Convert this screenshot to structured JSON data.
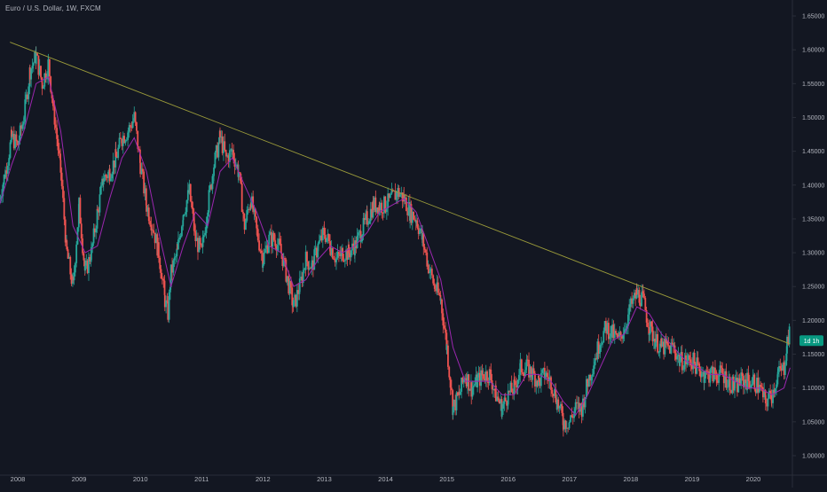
{
  "symbol_title": "Euro / U.S. Dollar, 1W, FXCM",
  "price_tag": {
    "label": "1d 1h",
    "value": 1.17,
    "color": "#089981"
  },
  "colors": {
    "background": "#131722",
    "up": "#26a69a",
    "down": "#ef5350",
    "moving_average": "#9c27b0",
    "trendline": "#9b9b3a",
    "axis_text": "#b2b5be",
    "axis_line": "#2a2e39"
  },
  "chart_data": {
    "type": "line",
    "xlabel": "",
    "ylabel": "",
    "x_ticks": [
      "2008",
      "2009",
      "2010",
      "2011",
      "2012",
      "2013",
      "2014",
      "2015",
      "2016",
      "2017",
      "2018",
      "2019",
      "2020"
    ],
    "y_ticks": [
      "1.65000",
      "1.60000",
      "1.55000",
      "1.50000",
      "1.45000",
      "1.40000",
      "1.35000",
      "1.30000",
      "1.25000",
      "1.20000",
      "1.15000",
      "1.10000",
      "1.05000",
      "1.00000"
    ],
    "ylim": [
      0.97,
      1.67
    ],
    "xlim": [
      2007.7,
      2020.9
    ],
    "grid": false,
    "legend": "none",
    "series": [
      {
        "kind": "candles",
        "points": [
          [
            2007.7,
            1.38
          ],
          [
            2007.8,
            1.42
          ],
          [
            2007.9,
            1.47
          ],
          [
            2008.0,
            1.46
          ],
          [
            2008.1,
            1.5
          ],
          [
            2008.2,
            1.57
          ],
          [
            2008.3,
            1.59
          ],
          [
            2008.4,
            1.55
          ],
          [
            2008.5,
            1.58
          ],
          [
            2008.6,
            1.5
          ],
          [
            2008.7,
            1.42
          ],
          [
            2008.8,
            1.3
          ],
          [
            2008.9,
            1.25
          ],
          [
            2009.0,
            1.37
          ],
          [
            2009.1,
            1.27
          ],
          [
            2009.2,
            1.3
          ],
          [
            2009.3,
            1.36
          ],
          [
            2009.4,
            1.41
          ],
          [
            2009.5,
            1.42
          ],
          [
            2009.6,
            1.44
          ],
          [
            2009.7,
            1.47
          ],
          [
            2009.8,
            1.48
          ],
          [
            2009.9,
            1.5
          ],
          [
            2010.0,
            1.43
          ],
          [
            2010.1,
            1.37
          ],
          [
            2010.2,
            1.34
          ],
          [
            2010.3,
            1.3
          ],
          [
            2010.4,
            1.23
          ],
          [
            2010.45,
            1.21
          ],
          [
            2010.5,
            1.27
          ],
          [
            2010.6,
            1.3
          ],
          [
            2010.7,
            1.36
          ],
          [
            2010.8,
            1.39
          ],
          [
            2010.9,
            1.32
          ],
          [
            2011.0,
            1.3
          ],
          [
            2011.1,
            1.37
          ],
          [
            2011.2,
            1.43
          ],
          [
            2011.3,
            1.47
          ],
          [
            2011.4,
            1.44
          ],
          [
            2011.5,
            1.45
          ],
          [
            2011.6,
            1.42
          ],
          [
            2011.7,
            1.34
          ],
          [
            2011.8,
            1.38
          ],
          [
            2011.9,
            1.33
          ],
          [
            2012.0,
            1.29
          ],
          [
            2012.1,
            1.32
          ],
          [
            2012.2,
            1.32
          ],
          [
            2012.3,
            1.3
          ],
          [
            2012.4,
            1.26
          ],
          [
            2012.5,
            1.22
          ],
          [
            2012.6,
            1.25
          ],
          [
            2012.7,
            1.29
          ],
          [
            2012.8,
            1.28
          ],
          [
            2012.9,
            1.31
          ],
          [
            2013.0,
            1.33
          ],
          [
            2013.1,
            1.31
          ],
          [
            2013.2,
            1.29
          ],
          [
            2013.3,
            1.3
          ],
          [
            2013.4,
            1.3
          ],
          [
            2013.5,
            1.31
          ],
          [
            2013.6,
            1.33
          ],
          [
            2013.7,
            1.35
          ],
          [
            2013.8,
            1.37
          ],
          [
            2013.9,
            1.37
          ],
          [
            2014.0,
            1.37
          ],
          [
            2014.1,
            1.38
          ],
          [
            2014.2,
            1.39
          ],
          [
            2014.3,
            1.38
          ],
          [
            2014.4,
            1.36
          ],
          [
            2014.5,
            1.35
          ],
          [
            2014.6,
            1.32
          ],
          [
            2014.7,
            1.28
          ],
          [
            2014.8,
            1.25
          ],
          [
            2014.9,
            1.23
          ],
          [
            2015.0,
            1.16
          ],
          [
            2015.1,
            1.07
          ],
          [
            2015.2,
            1.09
          ],
          [
            2015.3,
            1.12
          ],
          [
            2015.4,
            1.1
          ],
          [
            2015.5,
            1.11
          ],
          [
            2015.6,
            1.12
          ],
          [
            2015.7,
            1.12
          ],
          [
            2015.8,
            1.09
          ],
          [
            2015.9,
            1.07
          ],
          [
            2016.0,
            1.09
          ],
          [
            2016.1,
            1.1
          ],
          [
            2016.2,
            1.13
          ],
          [
            2016.3,
            1.13
          ],
          [
            2016.4,
            1.12
          ],
          [
            2016.5,
            1.11
          ],
          [
            2016.6,
            1.12
          ],
          [
            2016.7,
            1.11
          ],
          [
            2016.8,
            1.08
          ],
          [
            2016.9,
            1.05
          ],
          [
            2017.0,
            1.05
          ],
          [
            2017.1,
            1.07
          ],
          [
            2017.2,
            1.07
          ],
          [
            2017.3,
            1.11
          ],
          [
            2017.4,
            1.14
          ],
          [
            2017.5,
            1.17
          ],
          [
            2017.6,
            1.19
          ],
          [
            2017.7,
            1.18
          ],
          [
            2017.8,
            1.17
          ],
          [
            2017.9,
            1.19
          ],
          [
            2018.0,
            1.22
          ],
          [
            2018.1,
            1.24
          ],
          [
            2018.2,
            1.23
          ],
          [
            2018.3,
            1.19
          ],
          [
            2018.4,
            1.17
          ],
          [
            2018.5,
            1.16
          ],
          [
            2018.6,
            1.16
          ],
          [
            2018.7,
            1.16
          ],
          [
            2018.8,
            1.14
          ],
          [
            2018.9,
            1.14
          ],
          [
            2019.0,
            1.14
          ],
          [
            2019.1,
            1.13
          ],
          [
            2019.2,
            1.12
          ],
          [
            2019.3,
            1.12
          ],
          [
            2019.4,
            1.12
          ],
          [
            2019.5,
            1.12
          ],
          [
            2019.6,
            1.11
          ],
          [
            2019.7,
            1.1
          ],
          [
            2019.8,
            1.11
          ],
          [
            2019.9,
            1.11
          ],
          [
            2020.0,
            1.11
          ],
          [
            2020.1,
            1.1
          ],
          [
            2020.2,
            1.08
          ],
          [
            2020.3,
            1.09
          ],
          [
            2020.4,
            1.12
          ],
          [
            2020.5,
            1.13
          ],
          [
            2020.55,
            1.17
          ],
          [
            2020.6,
            1.18
          ]
        ]
      },
      {
        "kind": "moving_average",
        "points": [
          [
            2007.7,
            1.37
          ],
          [
            2007.9,
            1.43
          ],
          [
            2008.1,
            1.48
          ],
          [
            2008.3,
            1.55
          ],
          [
            2008.5,
            1.56
          ],
          [
            2008.7,
            1.48
          ],
          [
            2008.9,
            1.34
          ],
          [
            2009.1,
            1.3
          ],
          [
            2009.3,
            1.31
          ],
          [
            2009.5,
            1.38
          ],
          [
            2009.7,
            1.44
          ],
          [
            2009.9,
            1.47
          ],
          [
            2010.1,
            1.42
          ],
          [
            2010.3,
            1.33
          ],
          [
            2010.5,
            1.25
          ],
          [
            2010.7,
            1.31
          ],
          [
            2010.9,
            1.36
          ],
          [
            2011.1,
            1.34
          ],
          [
            2011.3,
            1.42
          ],
          [
            2011.5,
            1.44
          ],
          [
            2011.7,
            1.4
          ],
          [
            2011.9,
            1.36
          ],
          [
            2012.1,
            1.31
          ],
          [
            2012.3,
            1.3
          ],
          [
            2012.5,
            1.25
          ],
          [
            2012.7,
            1.26
          ],
          [
            2012.9,
            1.29
          ],
          [
            2013.1,
            1.31
          ],
          [
            2013.3,
            1.3
          ],
          [
            2013.5,
            1.31
          ],
          [
            2013.7,
            1.33
          ],
          [
            2013.9,
            1.36
          ],
          [
            2014.1,
            1.37
          ],
          [
            2014.3,
            1.38
          ],
          [
            2014.5,
            1.36
          ],
          [
            2014.7,
            1.31
          ],
          [
            2014.9,
            1.26
          ],
          [
            2015.1,
            1.16
          ],
          [
            2015.3,
            1.11
          ],
          [
            2015.5,
            1.11
          ],
          [
            2015.7,
            1.11
          ],
          [
            2015.9,
            1.09
          ],
          [
            2016.1,
            1.09
          ],
          [
            2016.3,
            1.12
          ],
          [
            2016.5,
            1.12
          ],
          [
            2016.7,
            1.11
          ],
          [
            2016.9,
            1.08
          ],
          [
            2017.1,
            1.06
          ],
          [
            2017.3,
            1.09
          ],
          [
            2017.5,
            1.13
          ],
          [
            2017.7,
            1.17
          ],
          [
            2017.9,
            1.18
          ],
          [
            2018.1,
            1.22
          ],
          [
            2018.3,
            1.21
          ],
          [
            2018.5,
            1.18
          ],
          [
            2018.7,
            1.16
          ],
          [
            2018.9,
            1.14
          ],
          [
            2019.1,
            1.13
          ],
          [
            2019.3,
            1.12
          ],
          [
            2019.5,
            1.12
          ],
          [
            2019.7,
            1.11
          ],
          [
            2019.9,
            1.1
          ],
          [
            2020.1,
            1.1
          ],
          [
            2020.3,
            1.09
          ],
          [
            2020.5,
            1.1
          ],
          [
            2020.6,
            1.13
          ]
        ]
      },
      {
        "kind": "trendline",
        "points": [
          [
            2007.7,
            1.61
          ],
          [
            2020.6,
            1.165
          ]
        ]
      }
    ]
  }
}
